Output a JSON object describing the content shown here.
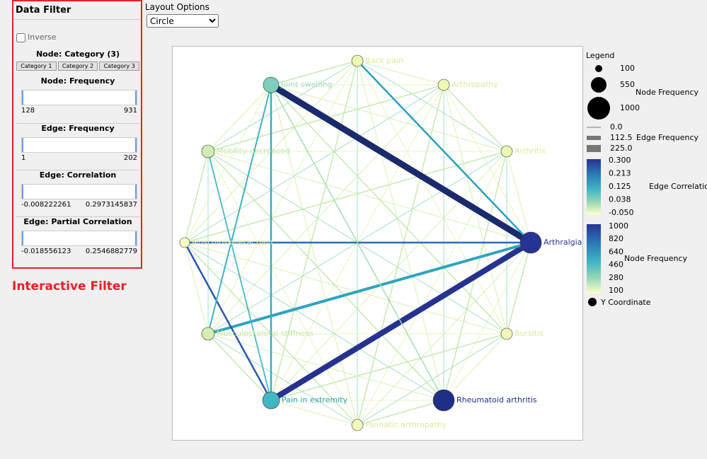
{
  "filter": {
    "title": "Data Filter",
    "inverse": "Inverse",
    "category": {
      "title": "Node: Category (3)",
      "buttons": [
        "Category 1",
        "Category 2",
        "Category 3"
      ]
    },
    "sliders": [
      {
        "title": "Node: Frequency",
        "min": "128",
        "max": "931"
      },
      {
        "title": "Edge: Frequency",
        "min": "1",
        "max": "202"
      },
      {
        "title": "Edge: Correlation",
        "min": "-0.008222261",
        "max": "0.2973145837"
      },
      {
        "title": "Edge: Partial Correlation",
        "min": "-0.018556123",
        "max": "0.2546882779"
      }
    ],
    "caption": "Interactive Filter"
  },
  "layout": {
    "label": "Layout Options",
    "selected": "Circle"
  },
  "graph": {
    "nodes": [
      {
        "label": "Back pain"
      },
      {
        "label": "Arthropathy"
      },
      {
        "label": "Arthritis"
      },
      {
        "label": "Arthralgia"
      },
      {
        "label": "Bursitis"
      },
      {
        "label": "Rheumatoid arthritis"
      },
      {
        "label": "Psoriatic arthropathy"
      },
      {
        "label": "Pain in extremity"
      },
      {
        "label": "Musculoskeletal stiffness"
      },
      {
        "label": "Musculoskeletal pain"
      },
      {
        "label": "Mobility decreased"
      },
      {
        "label": "Joint swelling"
      }
    ]
  },
  "legend": {
    "title": "Legend",
    "node_size": {
      "title": "Node Frequency",
      "labels": [
        "100",
        "550",
        "1000"
      ]
    },
    "edge_size": {
      "title": "Edge Frequency",
      "labels": [
        "0.0",
        "112.5",
        "225.0"
      ]
    },
    "edge_color": {
      "title": "Edge Correlation",
      "labels": [
        "0.300",
        "0.213",
        "0.125",
        "0.038",
        "-0.050"
      ]
    },
    "node_color": {
      "title": "Node Frequency",
      "labels": [
        "1000",
        "820",
        "640",
        "460",
        "280",
        "100"
      ]
    },
    "y_coord": "Y Coordinate"
  }
}
